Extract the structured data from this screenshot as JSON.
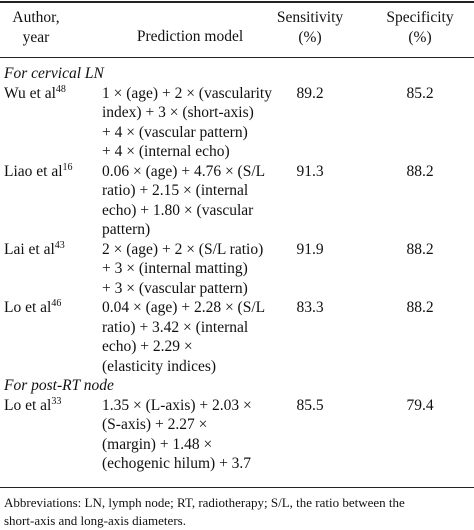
{
  "table": {
    "header": [
      [
        "Author,",
        "year"
      ],
      [
        "Prediction model"
      ],
      [
        "Sensitivity",
        "(%)"
      ],
      [
        "Specificity",
        "(%)"
      ]
    ],
    "sections": [
      {
        "title": "For cervical LN",
        "rows": [
          {
            "author": "Wu et al",
            "ref": "48",
            "model": [
              "1 × (age) + 2 × (vascularity",
              "index) + 3 × (short-axis)",
              "+ 4 × (vascular pattern)",
              "+ 4 × (internal echo)"
            ],
            "sensitivity": 89.2,
            "specificity": 85.2
          },
          {
            "author": "Liao et al",
            "ref": "16",
            "model": [
              "0.06 × (age) + 4.76 × (S/L",
              "ratio) + 2.15 × (internal",
              "echo) + 1.80 × (vascular",
              "pattern)"
            ],
            "sensitivity": 91.3,
            "specificity": 88.2
          },
          {
            "author": "Lai et al",
            "ref": "43",
            "model": [
              "2 × (age) + 2 × (S/L ratio)",
              "+ 3 × (internal matting)",
              "+ 3 × (vascular pattern)"
            ],
            "sensitivity": 91.9,
            "specificity": 88.2
          },
          {
            "author": "Lo et al",
            "ref": "46",
            "model": [
              "0.04 × (age) + 2.28 × (S/L",
              "ratio) + 3.42 × (internal",
              "echo) + 2.29 ×",
              "(elasticity indices)"
            ],
            "sensitivity": 83.3,
            "specificity": 88.2
          }
        ]
      },
      {
        "title": "For post-RT node",
        "rows": [
          {
            "author": "Lo et al",
            "ref": "33",
            "model": [
              "1.35 × (L-axis) + 2.03 ×",
              "(S-axis) + 2.27 ×",
              "(margin) + 1.48 ×",
              "(echogenic hilum) + 3.7"
            ],
            "sensitivity": 85.5,
            "specificity": 79.4
          }
        ]
      }
    ],
    "footnote": [
      "Abbreviations: LN, lymph node; RT, radiotherapy; S/L, the ratio between the",
      "short-axis and long-axis diameters."
    ]
  }
}
